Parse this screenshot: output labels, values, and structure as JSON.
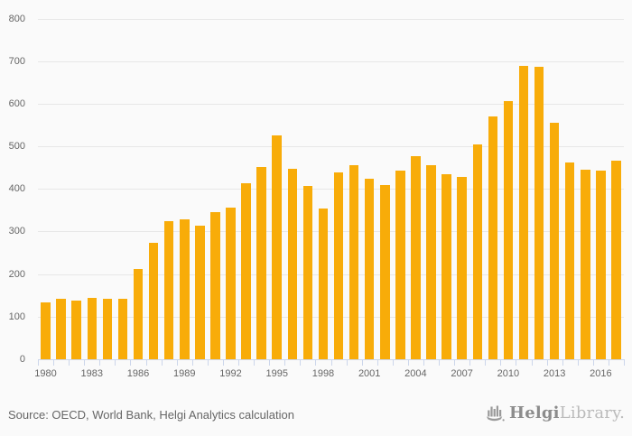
{
  "colors": {
    "background": "#FAFAFA",
    "bar": "#F8AC09",
    "gridline": "#E7E7E7",
    "axis_line": "#CCD6EB",
    "tick": "#CCD6EB",
    "axis_label": "#666666",
    "source_text": "#666666",
    "logo_dark": "#8C8C8C",
    "logo_light": "#BBBBBB"
  },
  "chart_data": {
    "type": "bar",
    "title": "",
    "xlabel": "",
    "ylabel": "",
    "ylim": [
      0,
      800
    ],
    "ytick_step": 100,
    "grid": true,
    "legend": false,
    "categories": [
      1980,
      1981,
      1982,
      1983,
      1984,
      1985,
      1986,
      1987,
      1988,
      1989,
      1990,
      1991,
      1992,
      1993,
      1994,
      1995,
      1996,
      1997,
      1998,
      1999,
      2000,
      2001,
      2002,
      2003,
      2004,
      2005,
      2006,
      2007,
      2008,
      2009,
      2010,
      2011,
      2012,
      2013,
      2014,
      2015,
      2016,
      2017
    ],
    "values": [
      135,
      143,
      138,
      146,
      144,
      142,
      213,
      275,
      325,
      329,
      315,
      346,
      357,
      414,
      452,
      527,
      449,
      407,
      356,
      440,
      457,
      425,
      410,
      444,
      477,
      456,
      436,
      430,
      505,
      572,
      607,
      690,
      687,
      556,
      463,
      447,
      444,
      467
    ],
    "xtick_labels": [
      "1980",
      "1983",
      "1986",
      "1989",
      "1992",
      "1995",
      "1998",
      "2001",
      "2004",
      "2007",
      "2010",
      "2013",
      "2016"
    ],
    "ytick_labels": [
      "0",
      "100",
      "200",
      "300",
      "400",
      "500",
      "600",
      "700",
      "800"
    ]
  },
  "footer": {
    "source": "Source: OECD, World Bank, Helgi Analytics calculation",
    "logo": {
      "icon": "bar-chart-icon",
      "brand_dark": "Helgi",
      "brand_light": "Library."
    }
  }
}
